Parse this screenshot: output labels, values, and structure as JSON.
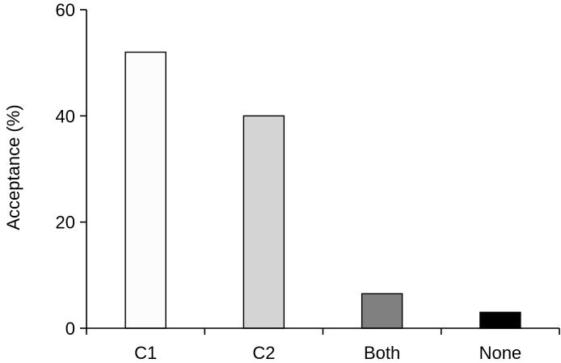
{
  "chart_data": {
    "type": "bar",
    "categories": [
      "C1",
      "C2",
      "Both",
      "None"
    ],
    "values": [
      52,
      40,
      6.5,
      3
    ],
    "bar_colors": [
      "#fcfcfc",
      "#d4d4d4",
      "#808080",
      "#000000"
    ],
    "title": "",
    "xlabel": "",
    "ylabel": "Acceptance (%)",
    "ylim": [
      0,
      60
    ],
    "yticks": [
      0,
      20,
      40,
      60
    ],
    "grid": false,
    "legend": "none"
  }
}
